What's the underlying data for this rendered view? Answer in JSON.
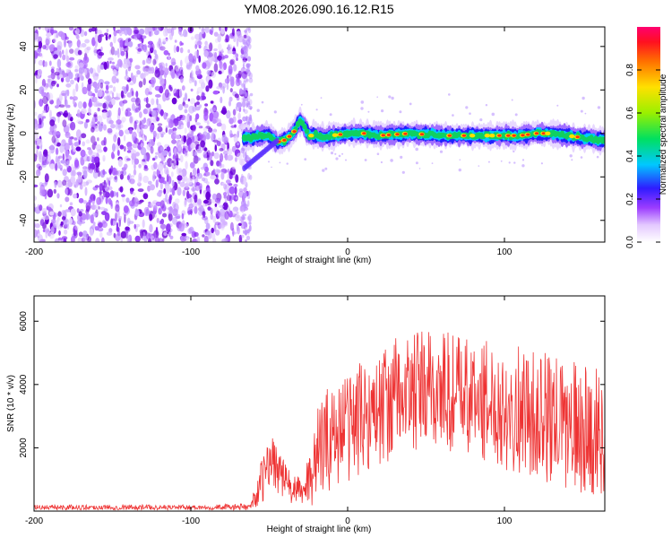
{
  "title": "YM08.2026.090.16.12.R15",
  "chart_data": [
    {
      "type": "heatmap",
      "panel": "spectrogram",
      "xlabel": "Height of straight line (km)",
      "ylabel": "Frequency (Hz)",
      "xlim": [
        -200,
        164
      ],
      "ylim": [
        -50,
        49
      ],
      "xticks": [
        -200,
        -100,
        0,
        100
      ],
      "yticks": [
        40,
        20,
        0,
        -20,
        -40
      ],
      "xtick_labels": [
        "-200",
        "-100",
        "0",
        "100"
      ],
      "ytick_labels": [
        "40",
        "20",
        "0",
        "-20",
        "-40"
      ],
      "noise_region_x": [
        -200,
        -64
      ],
      "signal_trace": {
        "x": [
          -66,
          -60,
          -55,
          -50,
          -45,
          -40,
          -35,
          -30,
          -28,
          -25,
          -20,
          -15,
          -10,
          0,
          10,
          20,
          40,
          60,
          80,
          100,
          110,
          120,
          130,
          140,
          150,
          160,
          164
        ],
        "freq": [
          -2,
          -2,
          -1,
          -1,
          -4,
          -3,
          0,
          6,
          4,
          -1,
          -1,
          -2,
          -1,
          0,
          0,
          -1,
          0,
          -1,
          -1,
          -1,
          -1,
          0,
          0,
          -1,
          -2,
          -3,
          -3
        ]
      },
      "colorbar": {
        "label": "Normalized spectral amplitude",
        "range": [
          0,
          1
        ],
        "ticks": [
          0.0,
          0.2,
          0.4,
          0.6,
          0.8
        ],
        "tick_labels": [
          "0.0",
          "0.2",
          "0.4",
          "0.6",
          "0.8"
        ]
      }
    },
    {
      "type": "line",
      "panel": "snr",
      "xlabel": "Height of straight line (km)",
      "ylabel": "SNR (10 * v/v)",
      "xlim": [
        -200,
        164
      ],
      "ylim": [
        0,
        6800
      ],
      "xticks": [
        -200,
        -100,
        0,
        100
      ],
      "yticks": [
        2000,
        4000,
        6000
      ],
      "xtick_labels": [
        "-200",
        "-100",
        "0",
        "100"
      ],
      "ytick_labels": [
        "2000",
        "4000",
        "6000"
      ],
      "series": [
        {
          "name": "SNR",
          "color": "#ee3333",
          "envelope": {
            "x": [
              -200,
              -150,
              -100,
              -62,
              -55,
              -48,
              -42,
              -36,
              -28,
              -22,
              -16,
              -10,
              0,
              10,
              20,
              30,
              40,
              50,
              60,
              70,
              80,
              90,
              100,
              110,
              120,
              130,
              140,
              150,
              160,
              164
            ],
            "mean": [
              120,
              120,
              120,
              130,
              900,
              1700,
              1100,
              700,
              600,
              1500,
              2100,
              2400,
              2700,
              3000,
              3200,
              3600,
              3700,
              3800,
              3800,
              3700,
              3500,
              3500,
              3300,
              3200,
              3000,
              2900,
              2700,
              2600,
              2500,
              2500
            ],
            "spread": [
              80,
              80,
              80,
              100,
              700,
              900,
              700,
              500,
              400,
              1400,
              1600,
              1700,
              1800,
              1800,
              1800,
              1900,
              1900,
              2000,
              2000,
              2000,
              1900,
              1900,
              2000,
              2000,
              2000,
              2100,
              2100,
              2100,
              2100,
              2100
            ]
          }
        }
      ]
    }
  ]
}
